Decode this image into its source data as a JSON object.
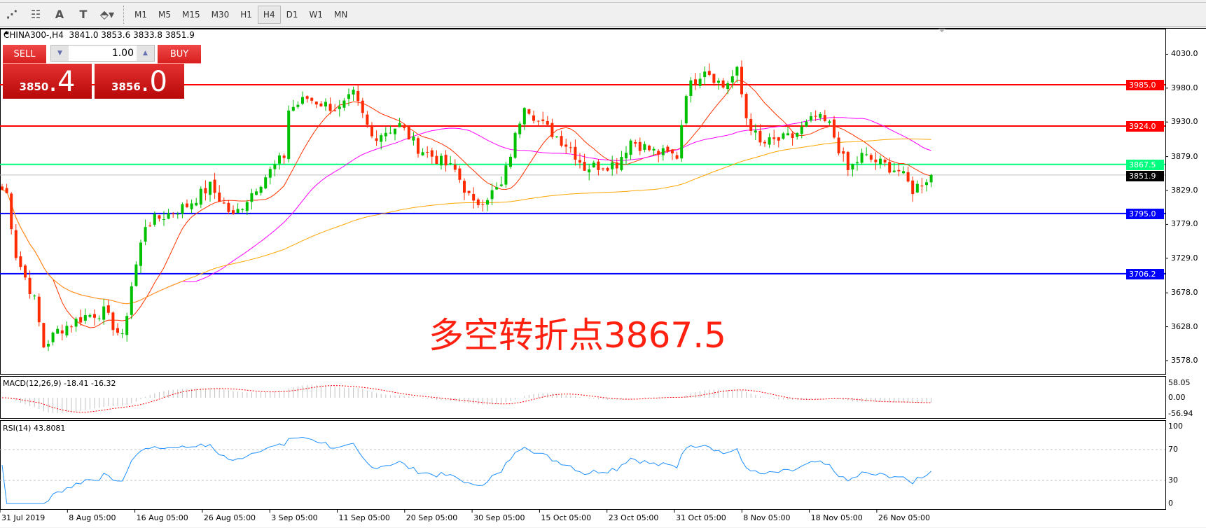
{
  "toolbar": {
    "tools": [
      {
        "icon": "fibonacci-expansion-icon",
        "glyph": "⋰"
      },
      {
        "icon": "fibonacci-fan-icon",
        "glyph": "☷"
      },
      {
        "icon": "text-icon",
        "glyph": "A"
      },
      {
        "icon": "text-label-icon",
        "glyph": "T"
      },
      {
        "icon": "arrows-dropdown-icon",
        "glyph": "⬘▾"
      }
    ],
    "timeframes": [
      "M1",
      "M5",
      "M15",
      "M30",
      "H1",
      "H4",
      "D1",
      "W1",
      "MN"
    ],
    "active_timeframe": "H4"
  },
  "chart": {
    "header": "CHINA300-,H4  3841.0 3853.6 3833.8 3851.9",
    "symbol": "CHINA300-",
    "ohlc": {
      "open": 3841.0,
      "high": 3853.6,
      "low": 3833.8,
      "close": 3851.9
    },
    "trade_panel": {
      "sell_label": "SELL",
      "buy_label": "BUY",
      "lot": "1.00",
      "sell_big": "3850",
      "sell_small": ".4",
      "buy_big": "3856",
      "buy_small": ".0"
    },
    "annotation": "多空转折点3867.5",
    "annotation_color": "#ff2010",
    "price_axis": [
      "4030.0",
      "3980.0",
      "3930.0",
      "3879.0",
      "3829.0",
      "3779.0",
      "3729.0",
      "3678.0",
      "3628.0",
      "3578.0"
    ],
    "levels": [
      {
        "value": "3985.0",
        "color": "#ff0000"
      },
      {
        "value": "3924.0",
        "color": "#ff0000"
      },
      {
        "value": "3867.5",
        "color": "#00ff7f"
      },
      {
        "value": "3795.0",
        "color": "#0000ff"
      },
      {
        "value": "3706.2",
        "color": "#0000ff"
      }
    ],
    "current_price": "3851.9",
    "bull_color": "#00c000",
    "bear_color": "#ff2a00",
    "ma_colors": [
      "#ff3300",
      "#ff00ff",
      "#ffa500"
    ],
    "price_path": [
      [
        0,
        3830
      ],
      [
        1,
        3824
      ],
      [
        3,
        3734
      ],
      [
        7,
        3667
      ],
      [
        9,
        3599
      ],
      [
        12,
        3622
      ],
      [
        18,
        3644
      ],
      [
        22,
        3650
      ],
      [
        26,
        3610
      ],
      [
        28,
        3689
      ],
      [
        31,
        3779
      ],
      [
        40,
        3807
      ],
      [
        45,
        3835
      ],
      [
        50,
        3790
      ],
      [
        55,
        3835
      ],
      [
        61,
        3880
      ],
      [
        62,
        3948
      ],
      [
        66,
        3965
      ],
      [
        73,
        3948
      ],
      [
        76,
        3970
      ],
      [
        80,
        3908
      ],
      [
        86,
        3925
      ],
      [
        90,
        3892
      ],
      [
        93,
        3880
      ],
      [
        98,
        3858
      ],
      [
        102,
        3807
      ],
      [
        108,
        3835
      ],
      [
        111,
        3908
      ],
      [
        113,
        3959
      ],
      [
        116,
        3931
      ],
      [
        123,
        3892
      ],
      [
        126,
        3863
      ],
      [
        133,
        3869
      ],
      [
        136,
        3903
      ],
      [
        141,
        3886
      ],
      [
        146,
        3880
      ],
      [
        148,
        3976
      ],
      [
        152,
        4010
      ],
      [
        156,
        3982
      ],
      [
        159,
        4004
      ],
      [
        161,
        3937
      ],
      [
        164,
        3897
      ],
      [
        171,
        3908
      ],
      [
        176,
        3937
      ],
      [
        179,
        3925
      ],
      [
        183,
        3858
      ],
      [
        186,
        3880
      ],
      [
        194,
        3858
      ],
      [
        197,
        3830
      ],
      [
        201,
        3852
      ]
    ]
  },
  "macd": {
    "label": "MACD(12,26,9) -18.41 -16.32",
    "axis": [
      "58.05",
      "0.00",
      "-56.94"
    ],
    "max": 58.05,
    "min": -56.94
  },
  "rsi": {
    "label": "RSI(14) 43.8081",
    "axis": [
      "100",
      "70",
      "30",
      "0"
    ]
  },
  "time_axis": [
    "31 Jul 2019",
    "8 Aug 05:00",
    "16 Aug 05:00",
    "26 Aug 05:00",
    "3 Sep 05:00",
    "11 Sep 05:00",
    "20 Sep 05:00",
    "30 Sep 05:00",
    "15 Oct 05:00",
    "23 Oct 05:00",
    "31 Oct 05:00",
    "8 Nov 05:00",
    "18 Nov 05:00",
    "26 Nov 05:00"
  ]
}
